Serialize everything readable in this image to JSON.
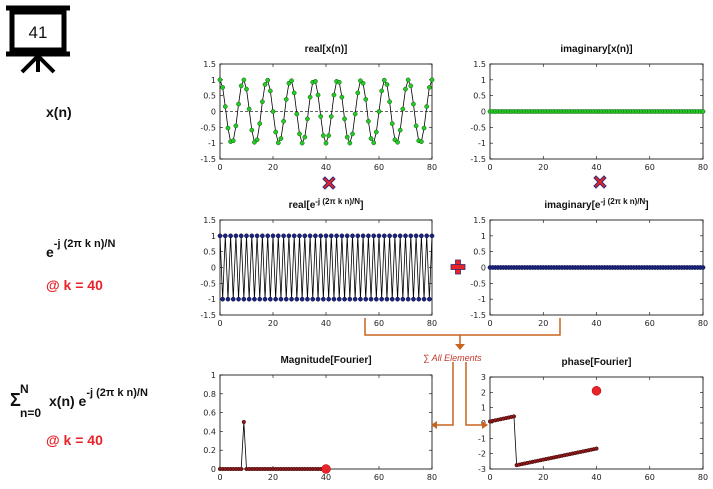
{
  "badge": {
    "number": "41"
  },
  "left_labels": {
    "xn": "x(n)",
    "exp_base": "e",
    "exp_sup": "-j (2π k n)/N",
    "k1": "@ k = 40",
    "sum_sym": "Σ",
    "sum_sup": "N",
    "sum_sub": "n=0",
    "sum_expr": "x(n) e",
    "sum_exp_sup": "-j (2π k n)/N",
    "k2": "@ k = 40"
  },
  "operators": {
    "plus_icon": "plus-icon",
    "times_icon": "times-icon"
  },
  "sum_note": "∑ All Elements",
  "colors": {
    "green": "#22cc22",
    "blue": "#1a237e",
    "red": "#e8232a",
    "darkred": "#8b1a1a",
    "orange": "#c8641e"
  },
  "chart_data": [
    {
      "id": "re_x",
      "type": "line",
      "title": "real[x(n)]",
      "signal": "cos(2*pi*9*n/80)",
      "n_start": 0,
      "n_end": 80,
      "xlim": [
        0,
        80
      ],
      "ylim": [
        -1.5,
        1.5
      ],
      "xticks": [
        0,
        20,
        40,
        60,
        80
      ],
      "yticks": [
        1.5,
        1,
        0.5,
        0,
        -0.5,
        -1,
        -1.5
      ],
      "marker": "green",
      "zero_line": true
    },
    {
      "id": "im_x",
      "type": "line",
      "title": "imaginary[x(n)]",
      "signal": "0",
      "n_start": 0,
      "n_end": 80,
      "xlim": [
        0,
        80
      ],
      "ylim": [
        -1.5,
        1.5
      ],
      "xticks": [
        0,
        20,
        40,
        60,
        80
      ],
      "yticks": [
        1.5,
        1,
        0.5,
        0,
        -0.5,
        -1,
        -1.5
      ],
      "marker": "green",
      "zero_line": true
    },
    {
      "id": "re_e",
      "type": "line",
      "title": "real[e",
      "title_sup": "-j (2π k n)/N",
      "title_end": "]",
      "signal": "cos(2*pi*40*n/80)",
      "n_start": 0,
      "n_end": 80,
      "xlim": [
        0,
        80
      ],
      "ylim": [
        -1.5,
        1.5
      ],
      "xticks": [
        0,
        20,
        40,
        60,
        80
      ],
      "yticks": [
        1.5,
        1,
        0.5,
        0,
        -0.5,
        -1,
        -1.5
      ],
      "marker": "blue",
      "zero_line": false
    },
    {
      "id": "im_e",
      "type": "line",
      "title": "imaginary[e",
      "title_sup": "-j (2π k n)/N",
      "title_end": "]",
      "signal": "0",
      "n_start": 0,
      "n_end": 80,
      "xlim": [
        0,
        80
      ],
      "ylim": [
        -1.5,
        1.5
      ],
      "xticks": [
        0,
        20,
        40,
        60,
        80
      ],
      "yticks": [
        1.5,
        1,
        0.5,
        0,
        -0.5,
        -1,
        -1.5
      ],
      "marker": "blue",
      "zero_line": false
    },
    {
      "id": "mag",
      "type": "line",
      "title": "Magnitude[Fourier]",
      "signal": "dft_mag",
      "n_start": 0,
      "n_end": 40,
      "xlim": [
        0,
        80
      ],
      "ylim": [
        0,
        1
      ],
      "xticks": [
        0,
        20,
        40,
        60,
        80
      ],
      "yticks": [
        1,
        0.8,
        0.6,
        0.4,
        0.2,
        0
      ],
      "marker": "darkred",
      "zero_line": true,
      "highlight": {
        "x": 40,
        "y": 0.0
      }
    },
    {
      "id": "phase",
      "type": "line",
      "title": "phase[Fourier]",
      "signal": "dft_phase",
      "n_start": 0,
      "n_end": 40,
      "xlim": [
        0,
        80
      ],
      "ylim": [
        -3,
        3
      ],
      "xticks": [
        0,
        20,
        40,
        60,
        80
      ],
      "yticks": [
        3,
        2,
        1,
        0,
        -1,
        -2,
        -3
      ],
      "marker": "darkred",
      "zero_line": false,
      "highlight": {
        "x": 40,
        "y": 2.1
      }
    }
  ]
}
